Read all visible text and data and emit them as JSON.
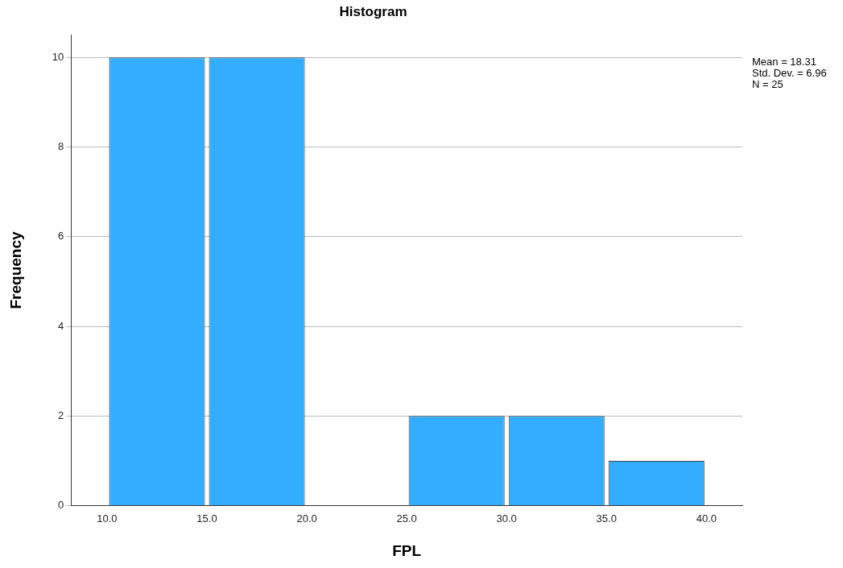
{
  "chart_data": {
    "type": "histogram",
    "title": "Histogram",
    "xlabel": "FPL",
    "ylabel": "Frequency",
    "bins": [
      10,
      15,
      20,
      25,
      30,
      35,
      40
    ],
    "values": [
      10,
      10,
      0,
      2,
      2,
      1
    ],
    "color": "#33adff",
    "xlim": [
      8.2,
      41.8
    ],
    "xticks": [
      {
        "value": 10,
        "label": "10.0"
      },
      {
        "value": 15,
        "label": "15.0"
      },
      {
        "value": 20,
        "label": "20.0"
      },
      {
        "value": 25,
        "label": "25.0"
      },
      {
        "value": 30,
        "label": "30.0"
      },
      {
        "value": 35,
        "label": "35.0"
      },
      {
        "value": 40,
        "label": "40.0"
      }
    ],
    "ylim": [
      0,
      10.5
    ],
    "yticks": [
      0,
      2,
      4,
      6,
      8,
      10
    ],
    "grid": "y",
    "annotations": [
      "Mean = 18.31",
      "Std. Dev. = 6.96",
      "N = 25"
    ]
  }
}
